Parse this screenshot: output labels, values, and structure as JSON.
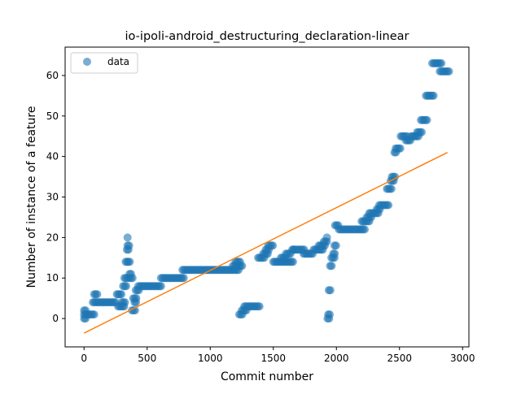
{
  "chart_data": {
    "type": "scatter",
    "title": "io-ipoli-android_destructuring_declaration-linear",
    "xlabel": "Commit number",
    "ylabel": "Number of instance of a feature",
    "xlim": [
      -150,
      3050
    ],
    "ylim": [
      -7,
      67
    ],
    "xticks": [
      0,
      500,
      1000,
      1500,
      2000,
      2500,
      3000
    ],
    "yticks": [
      0,
      10,
      20,
      30,
      40,
      50,
      60
    ],
    "grid": false,
    "legend": {
      "placement": "top-left",
      "entries": [
        "data"
      ]
    },
    "colors": {
      "data": "#1f77b4",
      "fit": "#ff7f0e"
    },
    "series": [
      {
        "name": "data",
        "kind": "scatter",
        "segments": [
          [
            0,
            20,
            1
          ],
          [
            0,
            20,
            2
          ],
          [
            0,
            20,
            0
          ],
          [
            20,
            90,
            1
          ],
          [
            70,
            260,
            4
          ],
          [
            80,
            110,
            6
          ],
          [
            260,
            300,
            6
          ],
          [
            270,
            320,
            3
          ],
          [
            300,
            330,
            4
          ],
          [
            310,
            340,
            8
          ],
          [
            320,
            345,
            10
          ],
          [
            330,
            345,
            14
          ],
          [
            340,
            360,
            17
          ],
          [
            345,
            360,
            18
          ],
          [
            345,
            350,
            20
          ],
          [
            350,
            370,
            14
          ],
          [
            360,
            380,
            11
          ],
          [
            360,
            390,
            10
          ],
          [
            380,
            410,
            2
          ],
          [
            390,
            420,
            5
          ],
          [
            400,
            420,
            4
          ],
          [
            410,
            440,
            7
          ],
          [
            430,
            620,
            8
          ],
          [
            610,
            790,
            10
          ],
          [
            780,
            1230,
            12
          ],
          [
            1180,
            1260,
            13
          ],
          [
            1200,
            1240,
            14
          ],
          [
            1230,
            1260,
            1
          ],
          [
            1250,
            1290,
            2
          ],
          [
            1270,
            1400,
            3
          ],
          [
            1380,
            1430,
            15
          ],
          [
            1420,
            1460,
            16
          ],
          [
            1440,
            1470,
            17
          ],
          [
            1460,
            1500,
            18
          ],
          [
            1500,
            1660,
            14
          ],
          [
            1560,
            1600,
            15
          ],
          [
            1600,
            1640,
            16
          ],
          [
            1650,
            1670,
            17
          ],
          [
            1660,
            1750,
            17
          ],
          [
            1740,
            1820,
            16
          ],
          [
            1820,
            1900,
            17
          ],
          [
            1860,
            1910,
            18
          ],
          [
            1900,
            1930,
            19
          ],
          [
            1925,
            1935,
            20
          ],
          [
            1930,
            1950,
            0
          ],
          [
            1935,
            1950,
            1
          ],
          [
            1940,
            1960,
            7
          ],
          [
            1950,
            1970,
            13
          ],
          [
            1960,
            1990,
            15
          ],
          [
            1975,
            1995,
            16
          ],
          [
            1985,
            2000,
            18
          ],
          [
            1990,
            2020,
            23
          ],
          [
            2020,
            2230,
            22
          ],
          [
            2200,
            2260,
            24
          ],
          [
            2240,
            2280,
            25
          ],
          [
            2260,
            2340,
            26
          ],
          [
            2320,
            2350,
            27
          ],
          [
            2340,
            2420,
            28
          ],
          [
            2400,
            2440,
            32
          ],
          [
            2430,
            2460,
            34
          ],
          [
            2440,
            2470,
            35
          ],
          [
            2460,
            2480,
            41
          ],
          [
            2470,
            2510,
            42
          ],
          [
            2510,
            2560,
            45
          ],
          [
            2550,
            2590,
            44
          ],
          [
            2590,
            2660,
            45
          ],
          [
            2640,
            2680,
            46
          ],
          [
            2670,
            2720,
            49
          ],
          [
            2710,
            2770,
            55
          ],
          [
            2760,
            2840,
            63
          ],
          [
            2820,
            2900,
            61
          ]
        ]
      },
      {
        "name": "",
        "kind": "line",
        "x": [
          0,
          2880
        ],
        "y": [
          -3.6,
          41
        ]
      }
    ]
  }
}
